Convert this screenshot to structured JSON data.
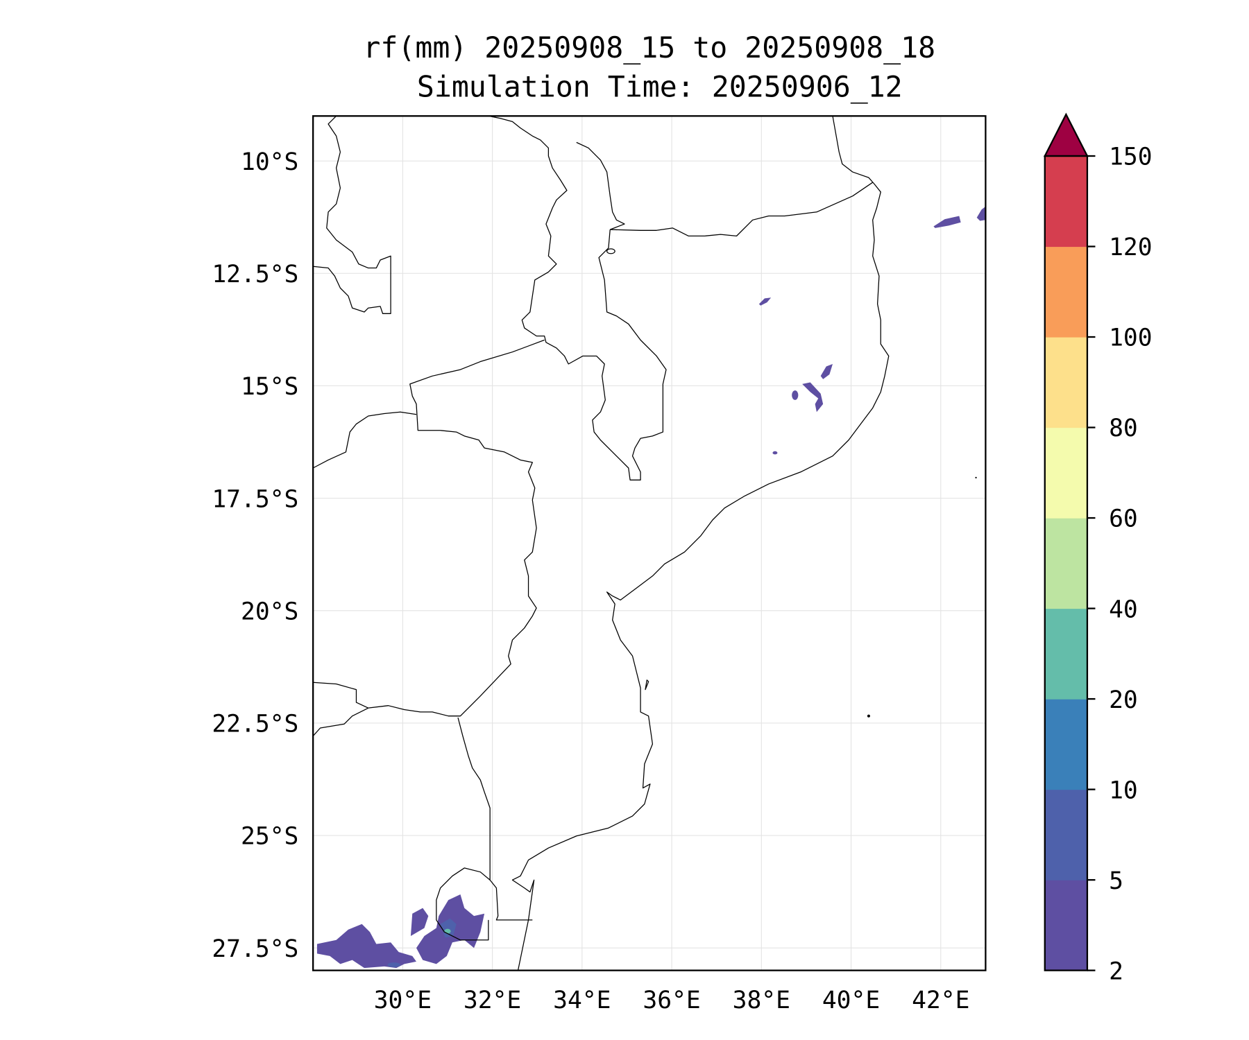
{
  "title": {
    "line1": "rf(mm) 20250908_15 to 20250908_18",
    "line2": "Simulation Time: 20250906_12"
  },
  "chart_data": {
    "type": "heatmap",
    "subtype": "filled-contour map",
    "variable": "rf(mm)",
    "lon_range": [
      28,
      43
    ],
    "lat_range": [
      -28,
      -9
    ],
    "x_ticks": [
      30,
      32,
      34,
      36,
      38,
      40,
      42
    ],
    "x_tick_labels": [
      "30°E",
      "32°E",
      "34°E",
      "36°E",
      "38°E",
      "40°E",
      "42°E"
    ],
    "y_ticks": [
      -10,
      -12.5,
      -15,
      -17.5,
      -20,
      -22.5,
      -25,
      -27.5
    ],
    "y_tick_labels": [
      "10°S",
      "12.5°S",
      "15°S",
      "17.5°S",
      "20°S",
      "22.5°S",
      "25°S",
      "27.5°S"
    ],
    "grid": true,
    "colorbar": {
      "levels": [
        2,
        5,
        10,
        20,
        40,
        60,
        80,
        100,
        120,
        150
      ],
      "tick_labels": [
        "2",
        "5",
        "10",
        "20",
        "40",
        "60",
        "80",
        "100",
        "120",
        "150"
      ],
      "colors": [
        "#5e4fa2",
        "#4e61ab",
        "#3a80b9",
        "#64bdaa",
        "#bde4a1",
        "#f4fbad",
        "#fde08b",
        "#f99d59",
        "#d53e4f"
      ],
      "extend_max_color": "#9e0142",
      "placement": "right"
    },
    "rain_areas": [
      {
        "region": "southern Mozambique / Eswatini / South Africa",
        "max_class_mm": "20-40"
      },
      {
        "region": "northern Mozambique inland",
        "max_class_mm": "2-5"
      },
      {
        "region": "Mozambique Channel near Comoros",
        "max_class_mm": "2-5"
      }
    ]
  }
}
